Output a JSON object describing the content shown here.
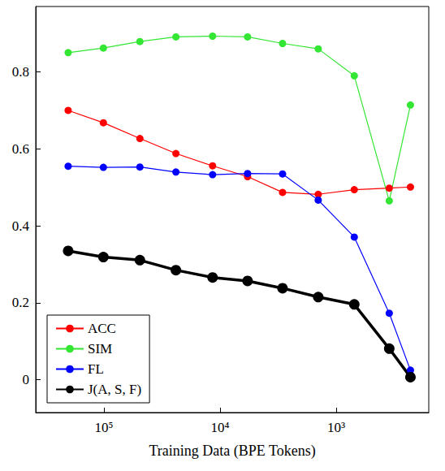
{
  "chart_data": {
    "type": "line",
    "x_label": "Training Data (BPE Tokens)",
    "x": [
      203000,
      101000,
      49000,
      24000,
      11600,
      5800,
      2900,
      1430,
      700,
      350,
      230
    ],
    "series": [
      {
        "name": "ACC",
        "color": "#ff0000",
        "marker": "circle",
        "line_style": "normal",
        "values": [
          0.7,
          0.668,
          0.627,
          0.588,
          0.556,
          0.528,
          0.487,
          0.482,
          0.494,
          0.498,
          0.501
        ]
      },
      {
        "name": "SIM",
        "color": "#33e633",
        "marker": "circle",
        "line_style": "normal",
        "values": [
          0.85,
          0.862,
          0.879,
          0.891,
          0.893,
          0.891,
          0.874,
          0.86,
          0.79,
          0.465,
          0.714
        ]
      },
      {
        "name": "FL",
        "color": "#0000ff",
        "marker": "circle",
        "line_style": "normal",
        "values": [
          0.555,
          0.552,
          0.553,
          0.54,
          0.533,
          0.536,
          0.535,
          0.467,
          0.371,
          0.173,
          0.025
        ]
      },
      {
        "name": "J(A, S, F)",
        "color": "#000000",
        "marker": "circle",
        "line_style": "bold",
        "values": [
          0.335,
          0.319,
          0.311,
          0.285,
          0.266,
          0.257,
          0.238,
          0.215,
          0.196,
          0.081,
          0.007
        ]
      }
    ],
    "log": "x",
    "xlim": [
      386000,
      160
    ],
    "xticks": [
      {
        "value": 100000,
        "label": "10⁵"
      },
      {
        "value": 10000,
        "label": "10⁴"
      },
      {
        "value": 1000,
        "label": "10³"
      }
    ],
    "ylim": [
      -0.085,
      0.97
    ],
    "yticks": [
      0,
      0.2,
      0.4,
      0.6,
      0.8
    ],
    "grid": false,
    "legend": "lower left"
  }
}
